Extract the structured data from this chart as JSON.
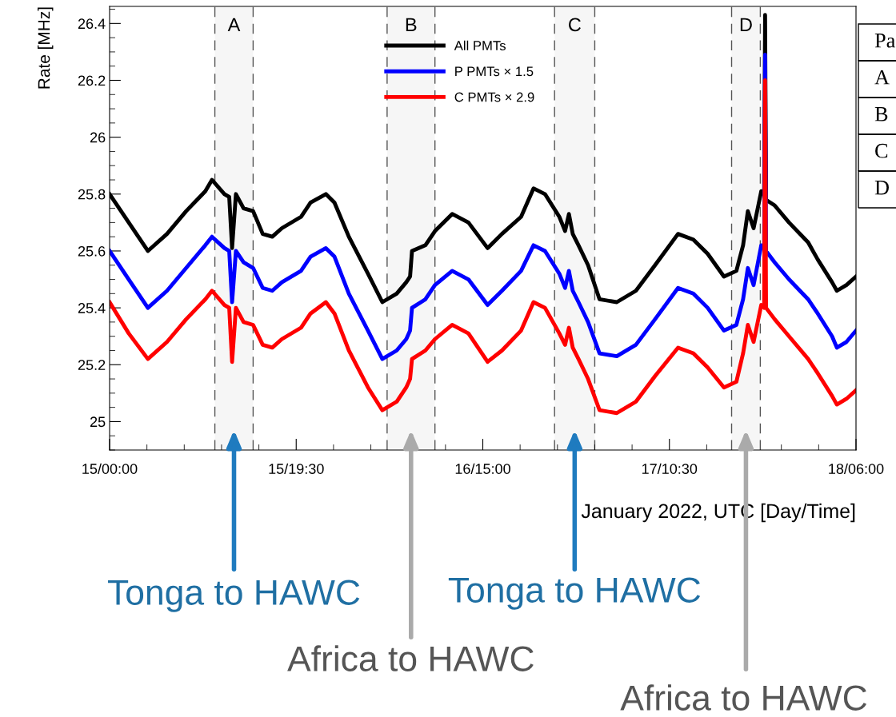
{
  "chart_data": {
    "type": "line",
    "xlabel": "January 2022, UTC [Day/Time]",
    "ylabel": "Rate [MHz]",
    "xlim": [
      "2022-01-15T00:00",
      "2022-01-18T06:00"
    ],
    "xticks": [
      {
        "value": "2022-01-15T00:00",
        "label": "15/00:00"
      },
      {
        "value": "2022-01-15T19:30",
        "label": "15/19:30"
      },
      {
        "value": "2022-01-16T15:00",
        "label": "16/15:00"
      },
      {
        "value": "2022-01-17T10:30",
        "label": "17/10:30"
      },
      {
        "value": "2022-01-18T06:00",
        "label": "18/06:00"
      }
    ],
    "ylim": [
      24.9,
      26.46
    ],
    "yticks": [
      25,
      25.2,
      25.4,
      25.6,
      25.8,
      26,
      26.2,
      26.4
    ],
    "x": [
      "2022-01-15T00:00",
      "2022-01-15T02:00",
      "2022-01-15T04:00",
      "2022-01-15T06:00",
      "2022-01-15T08:00",
      "2022-01-15T10:00",
      "2022-01-15T10:42",
      "2022-01-15T12:00",
      "2022-01-15T12:30",
      "2022-01-15T12:48",
      "2022-01-15T13:12",
      "2022-01-15T14:00",
      "2022-01-15T15:00",
      "2022-01-15T16:00",
      "2022-01-15T17:00",
      "2022-01-15T18:00",
      "2022-01-15T20:00",
      "2022-01-15T21:00",
      "2022-01-15T22:36",
      "2022-01-15T23:30",
      "2022-01-16T01:00",
      "2022-01-16T03:00",
      "2022-01-16T04:30",
      "2022-01-16T06:00",
      "2022-01-16T07:00",
      "2022-01-16T07:24",
      "2022-01-16T07:36",
      "2022-01-16T09:00",
      "2022-01-16T10:00",
      "2022-01-16T11:48",
      "2022-01-16T13:30",
      "2022-01-16T15:30",
      "2022-01-16T17:00",
      "2022-01-16T19:00",
      "2022-01-16T20:18",
      "2022-01-16T21:30",
      "2022-01-16T23:00",
      "2022-01-16T23:36",
      "2022-01-17T00:00",
      "2022-01-17T00:24",
      "2022-01-17T01:00",
      "2022-01-17T02:00",
      "2022-01-17T03:12",
      "2022-01-17T05:00",
      "2022-01-17T07:00",
      "2022-01-17T09:00",
      "2022-01-17T11:24",
      "2022-01-17T13:00",
      "2022-01-17T14:30",
      "2022-01-17T16:12",
      "2022-01-17T17:30",
      "2022-01-17T18:12",
      "2022-01-17T18:42",
      "2022-01-17T19:18",
      "2022-01-17T20:06",
      "2022-01-17T20:24",
      "2022-01-17T20:30",
      "2022-01-17T20:36",
      "2022-01-17T21:30",
      "2022-01-17T23:00",
      "2022-01-18T01:00",
      "2022-01-18T02:00",
      "2022-01-18T03:30",
      "2022-01-18T04:00",
      "2022-01-18T05:00",
      "2022-01-18T06:00"
    ],
    "series": [
      {
        "name": "All PMTs",
        "color": "#000000",
        "values": [
          25.8,
          25.7,
          25.6,
          25.66,
          25.74,
          25.81,
          25.85,
          25.8,
          25.79,
          25.61,
          25.8,
          25.75,
          25.74,
          25.66,
          25.65,
          25.68,
          25.72,
          25.77,
          25.8,
          25.77,
          25.65,
          25.52,
          25.42,
          25.45,
          25.49,
          25.51,
          25.6,
          25.62,
          25.67,
          25.73,
          25.7,
          25.61,
          25.66,
          25.72,
          25.82,
          25.8,
          25.72,
          25.67,
          25.73,
          25.66,
          25.62,
          25.55,
          25.43,
          25.42,
          25.46,
          25.55,
          25.66,
          25.64,
          25.59,
          25.51,
          25.53,
          25.62,
          25.74,
          25.68,
          25.81,
          25.8,
          26.43,
          25.78,
          25.76,
          25.7,
          25.63,
          25.57,
          25.49,
          25.46,
          25.48,
          25.51
        ]
      },
      {
        "name": "P PMTs × 1.5",
        "color": "#0000ff",
        "values": [
          25.6,
          25.5,
          25.4,
          25.46,
          25.54,
          25.62,
          25.65,
          25.61,
          25.6,
          25.42,
          25.6,
          25.56,
          25.54,
          25.47,
          25.46,
          25.49,
          25.53,
          25.58,
          25.61,
          25.58,
          25.45,
          25.32,
          25.22,
          25.25,
          25.29,
          25.32,
          25.4,
          25.43,
          25.48,
          25.53,
          25.5,
          25.41,
          25.46,
          25.53,
          25.62,
          25.6,
          25.52,
          25.47,
          25.53,
          25.46,
          25.42,
          25.35,
          25.24,
          25.23,
          25.27,
          25.36,
          25.47,
          25.45,
          25.4,
          25.32,
          25.34,
          25.43,
          25.54,
          25.48,
          25.62,
          25.61,
          26.29,
          25.6,
          25.56,
          25.5,
          25.43,
          25.38,
          25.3,
          25.26,
          25.28,
          25.32
        ]
      },
      {
        "name": "C PMTs × 2.9",
        "color": "#ff0000",
        "values": [
          25.42,
          25.31,
          25.22,
          25.28,
          25.36,
          25.43,
          25.46,
          25.41,
          25.4,
          25.21,
          25.4,
          25.35,
          25.34,
          25.27,
          25.26,
          25.29,
          25.33,
          25.38,
          25.42,
          25.38,
          25.25,
          25.12,
          25.04,
          25.07,
          25.12,
          25.15,
          25.22,
          25.25,
          25.29,
          25.34,
          25.31,
          25.21,
          25.25,
          25.32,
          25.42,
          25.4,
          25.31,
          25.27,
          25.33,
          25.26,
          25.22,
          25.15,
          25.04,
          25.03,
          25.07,
          25.16,
          25.26,
          25.24,
          25.19,
          25.12,
          25.14,
          25.24,
          25.34,
          25.28,
          25.41,
          25.4,
          26.2,
          25.4,
          25.36,
          25.3,
          25.22,
          25.17,
          25.09,
          25.06,
          25.08,
          25.11
        ]
      }
    ],
    "bands": [
      {
        "axis": "x",
        "from": "2022-01-15T11:00",
        "to": "2022-01-15T15:00",
        "label": "A",
        "color": "#f6f6f6"
      },
      {
        "axis": "x",
        "from": "2022-01-16T05:00",
        "to": "2022-01-16T10:00",
        "label": "B",
        "color": "#f6f6f6"
      },
      {
        "axis": "x",
        "from": "2022-01-16T22:30",
        "to": "2022-01-17T02:42",
        "label": "C",
        "color": "#f6f6f6"
      },
      {
        "axis": "x",
        "from": "2022-01-17T17:00",
        "to": "2022-01-17T20:00",
        "label": "D",
        "color": "#f6f6f6"
      }
    ],
    "legend": "top",
    "grid": false,
    "annotations": [
      "Tonga to HAWC",
      "Africa to HAWC",
      "Tonga to HAWC",
      "Africa to HAWC",
      "Pa",
      "A",
      "B",
      "C",
      "D"
    ]
  }
}
